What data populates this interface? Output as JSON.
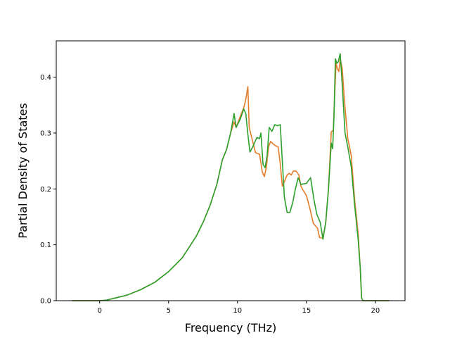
{
  "chart_data": {
    "type": "line",
    "title": "",
    "xlabel": "Frequency (THz)",
    "ylabel": "Partial Density of States",
    "xlim": [
      -3.15,
      22.15
    ],
    "ylim": [
      0,
      0.465
    ],
    "xticks": [
      0,
      5,
      10,
      15,
      20
    ],
    "yticks": [
      0.0,
      0.1,
      0.2,
      0.3,
      0.4
    ],
    "ytick_labels": [
      "0.0",
      "0.1",
      "0.2",
      "0.3",
      "0.4"
    ],
    "grid": false,
    "legend": "none",
    "series": [
      {
        "color": "#e37d2b",
        "x": [
          -2.0,
          0.0,
          0.5,
          1.0,
          2.0,
          3.0,
          4.0,
          5.0,
          6.0,
          7.0,
          7.5,
          8.0,
          8.5,
          8.9,
          9.2,
          9.5,
          9.75,
          9.9,
          10.2,
          10.45,
          10.6,
          10.75,
          10.85,
          11.0,
          11.3,
          11.6,
          11.8,
          11.95,
          12.1,
          12.25,
          12.4,
          12.7,
          12.95,
          13.1,
          13.25,
          13.4,
          13.6,
          13.75,
          13.9,
          14.05,
          14.25,
          14.45,
          14.6,
          14.75,
          15.0,
          15.25,
          15.5,
          15.8,
          15.95,
          16.2,
          16.4,
          16.6,
          16.8,
          16.95,
          17.05,
          17.15,
          17.25,
          17.35,
          17.45,
          17.6,
          17.75,
          18.0,
          18.25,
          18.5,
          18.75,
          18.9,
          19.0,
          19.1,
          19.3,
          20.0,
          21.0
        ],
        "values": [
          0.0,
          0.0,
          0.001,
          0.004,
          0.01,
          0.02,
          0.033,
          0.052,
          0.077,
          0.115,
          0.14,
          0.17,
          0.208,
          0.252,
          0.27,
          0.3,
          0.32,
          0.31,
          0.33,
          0.345,
          0.36,
          0.383,
          0.31,
          0.295,
          0.265,
          0.262,
          0.23,
          0.222,
          0.24,
          0.275,
          0.285,
          0.278,
          0.275,
          0.245,
          0.205,
          0.213,
          0.225,
          0.228,
          0.225,
          0.232,
          0.232,
          0.225,
          0.205,
          0.198,
          0.188,
          0.165,
          0.138,
          0.13,
          0.113,
          0.112,
          0.14,
          0.2,
          0.302,
          0.305,
          0.37,
          0.425,
          0.415,
          0.41,
          0.433,
          0.415,
          0.36,
          0.29,
          0.26,
          0.18,
          0.12,
          0.06,
          0.005,
          0.0,
          0.0,
          0.0,
          0.0
        ]
      },
      {
        "color": "#2ca02c",
        "x": [
          -2.0,
          0.0,
          0.5,
          1.0,
          2.0,
          3.0,
          4.0,
          5.0,
          6.0,
          7.0,
          7.5,
          8.0,
          8.5,
          8.9,
          9.2,
          9.5,
          9.75,
          9.9,
          10.2,
          10.45,
          10.6,
          10.75,
          10.9,
          11.1,
          11.4,
          11.6,
          11.7,
          11.85,
          12.0,
          12.15,
          12.3,
          12.5,
          12.7,
          12.9,
          13.1,
          13.25,
          13.4,
          13.6,
          13.8,
          14.0,
          14.2,
          14.4,
          14.6,
          15.0,
          15.3,
          15.55,
          15.75,
          16.0,
          16.2,
          16.4,
          16.6,
          16.8,
          16.9,
          17.0,
          17.1,
          17.2,
          17.3,
          17.45,
          17.6,
          17.8,
          18.0,
          18.25,
          18.5,
          18.75,
          18.9,
          19.0,
          19.1,
          19.3,
          20.0,
          21.0
        ],
        "values": [
          0.0,
          0.0,
          0.001,
          0.004,
          0.01,
          0.02,
          0.033,
          0.052,
          0.077,
          0.115,
          0.14,
          0.17,
          0.208,
          0.252,
          0.27,
          0.3,
          0.335,
          0.31,
          0.325,
          0.343,
          0.335,
          0.298,
          0.266,
          0.275,
          0.292,
          0.29,
          0.3,
          0.244,
          0.238,
          0.26,
          0.31,
          0.303,
          0.315,
          0.313,
          0.315,
          0.25,
          0.185,
          0.158,
          0.158,
          0.175,
          0.2,
          0.22,
          0.208,
          0.21,
          0.22,
          0.18,
          0.155,
          0.14,
          0.11,
          0.14,
          0.2,
          0.282,
          0.272,
          0.33,
          0.433,
          0.425,
          0.427,
          0.442,
          0.385,
          0.3,
          0.275,
          0.24,
          0.17,
          0.11,
          0.06,
          0.005,
          0.0,
          0.0,
          0.0,
          0.0
        ]
      }
    ]
  }
}
